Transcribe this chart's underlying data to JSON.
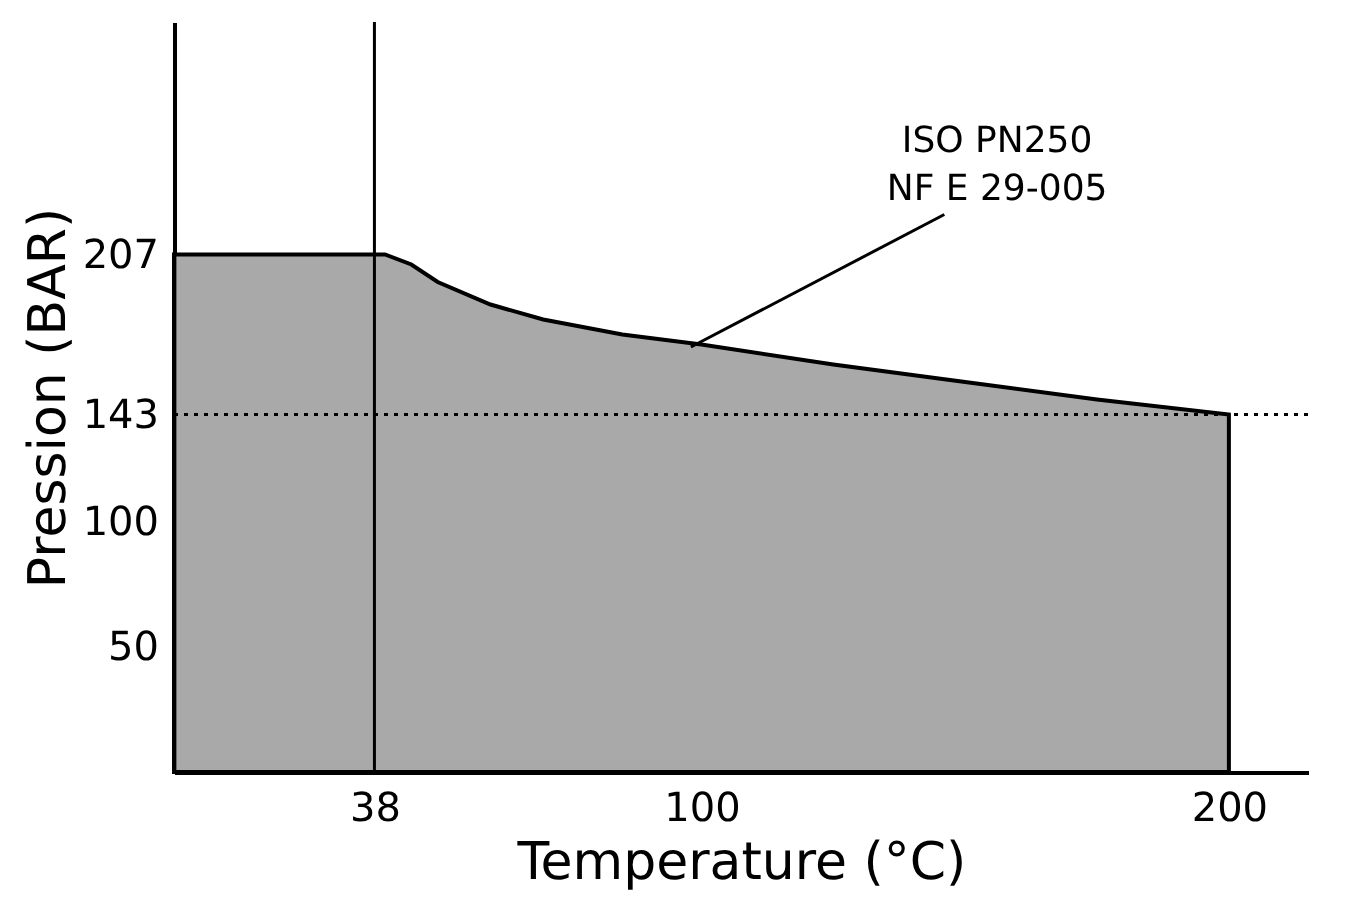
{
  "chart_data": {
    "type": "area",
    "xlabel": "Temperature (°C)",
    "ylabel": "Pression (BAR)",
    "x": [
      0,
      38,
      40,
      45,
      50,
      60,
      70,
      85,
      100,
      125,
      150,
      175,
      200
    ],
    "series": [
      {
        "color": "#8c8c8c",
        "values": [
          207,
          207,
          207,
          203,
          196,
          187,
          181,
          175,
          171,
          163,
          156,
          149,
          143
        ]
      }
    ],
    "xlim": [
      0,
      215
    ],
    "ylim": [
      0,
      300
    ],
    "xticks": [
      38,
      100,
      200
    ],
    "yticks": [
      50,
      100,
      143,
      207
    ],
    "ref_lines": [
      {
        "axis": "y",
        "value": 143,
        "line_style": "dotted",
        "color": "#000000"
      },
      {
        "axis": "x",
        "value": 38,
        "line_style": "solid",
        "color": "#000000"
      }
    ],
    "annotations": [
      {
        "text": "ISO PN250\nNF E 29-005",
        "x": 98,
        "y": 170
      }
    ],
    "grid": false
  }
}
